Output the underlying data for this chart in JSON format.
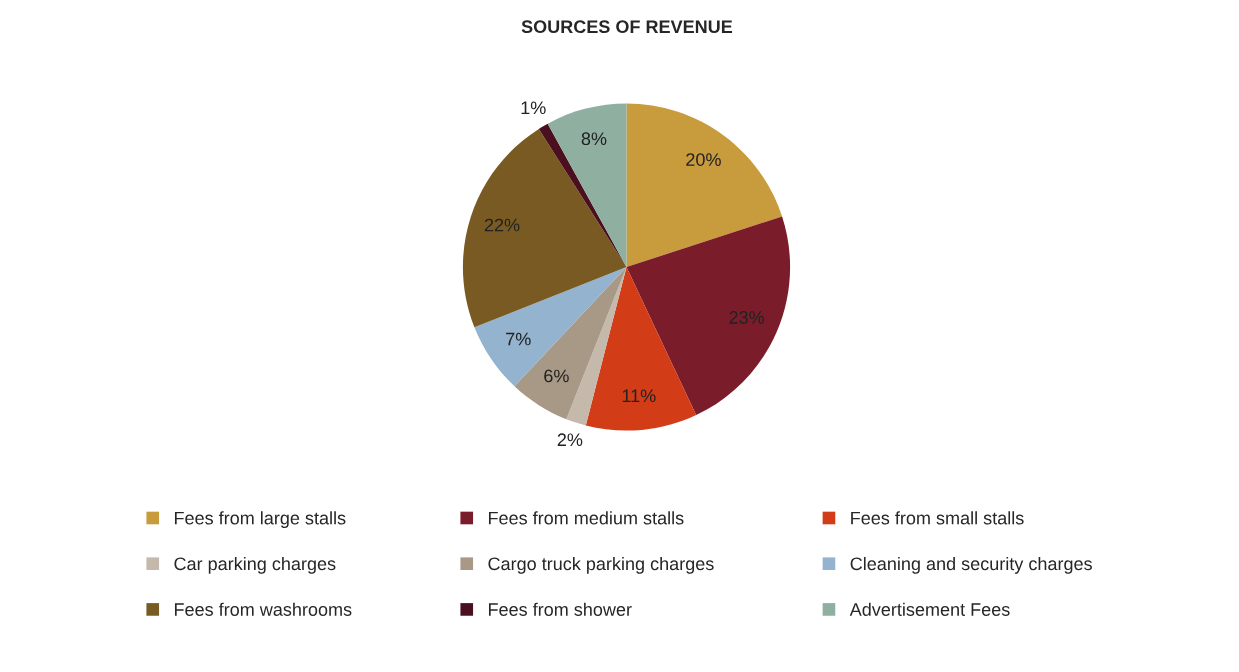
{
  "chart_data": {
    "type": "pie",
    "title": "SOURCES OF REVENUE",
    "categories": [
      "Fees from large stalls",
      "Fees from medium stalls",
      "Fees from small stalls",
      "Car parking charges",
      "Cargo truck parking charges",
      "Cleaning and security charges",
      "Fees from washrooms",
      "Fees from shower",
      "Advertisement Fees"
    ],
    "values": [
      20,
      23,
      11,
      2,
      6,
      7,
      22,
      1,
      8
    ],
    "colors": [
      "#c89b3c",
      "#7b1c2b",
      "#d23c17",
      "#c4b9aa",
      "#a89886",
      "#94b3cf",
      "#785a22",
      "#4a1020",
      "#8fb0a0"
    ],
    "value_labels": [
      "20%",
      "23%",
      "11%",
      "2%",
      "6%",
      "7%",
      "22%",
      "1%",
      "8%"
    ],
    "legend": "bottom"
  }
}
